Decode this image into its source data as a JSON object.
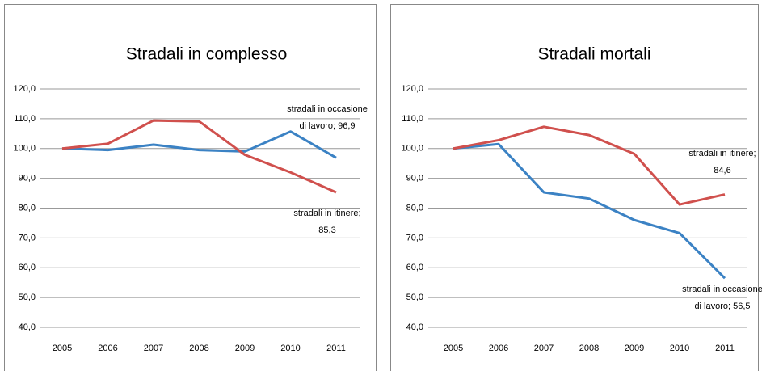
{
  "chart_data": [
    {
      "type": "line",
      "title": "Stradali in complesso",
      "categories": [
        "2005",
        "2006",
        "2007",
        "2008",
        "2009",
        "2010",
        "2011"
      ],
      "series": [
        {
          "color": "#3b82c4",
          "values": [
            100,
            99.5,
            101.3,
            99.5,
            99.0,
            105.7,
            96.9
          ]
        },
        {
          "color": "#d0504d",
          "values": [
            100,
            101.6,
            109.4,
            109.1,
            97.9,
            92.0,
            85.3
          ]
        }
      ],
      "ylim": [
        40,
        120
      ],
      "yticks": [
        {
          "value": 40,
          "label": "40,0"
        },
        {
          "value": 50,
          "label": "50,0"
        },
        {
          "value": 60,
          "label": "60,0"
        },
        {
          "value": 70,
          "label": "70,0"
        },
        {
          "value": 80,
          "label": "80,0"
        },
        {
          "value": 90,
          "label": "90,0"
        },
        {
          "value": 100,
          "label": "100,0"
        },
        {
          "value": 110,
          "label": "110,0"
        },
        {
          "value": 120,
          "label": "120,0"
        }
      ],
      "grid": true,
      "annotations": [
        {
          "lines": [
            "stradali in occasione",
            "di lavoro;  96,9"
          ]
        },
        {
          "lines": [
            "stradali in itinere;",
            "85,3"
          ]
        }
      ]
    },
    {
      "type": "line",
      "title": "Stradali mortali",
      "categories": [
        "2005",
        "2006",
        "2007",
        "2008",
        "2009",
        "2010",
        "2011"
      ],
      "series": [
        {
          "color": "#3b82c4",
          "values": [
            100,
            101.5,
            85.3,
            83.2,
            76.0,
            71.6,
            56.5
          ]
        },
        {
          "color": "#d0504d",
          "values": [
            100,
            102.8,
            107.3,
            104.5,
            98.2,
            81.2,
            84.6
          ]
        }
      ],
      "ylim": [
        40,
        120
      ],
      "yticks": [
        {
          "value": 40,
          "label": "40,0"
        },
        {
          "value": 50,
          "label": "50,0"
        },
        {
          "value": 60,
          "label": "60,0"
        },
        {
          "value": 70,
          "label": "70,0"
        },
        {
          "value": 80,
          "label": "80,0"
        },
        {
          "value": 90,
          "label": "90,0"
        },
        {
          "value": 100,
          "label": "100,0"
        },
        {
          "value": 110,
          "label": "110,0"
        },
        {
          "value": 120,
          "label": "120,0"
        }
      ],
      "grid": true,
      "annotations": [
        {
          "lines": [
            "stradali in occasione",
            "di lavoro;  56,5"
          ]
        },
        {
          "lines": [
            "stradali in itinere;",
            "84,6"
          ]
        }
      ]
    }
  ]
}
